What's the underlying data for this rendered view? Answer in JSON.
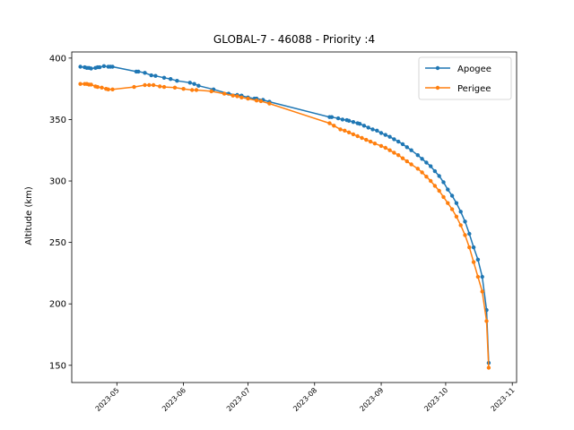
{
  "chart_data": {
    "type": "line",
    "title": "GLOBAL-7 - 46088 - Priority :4",
    "xlabel": "",
    "ylabel": "Altitude (km)",
    "xlim": [
      "2023-04-10",
      "2023-11-03"
    ],
    "ylim": [
      136,
      405
    ],
    "x_ticks": [
      "2023-05",
      "2023-06",
      "2023-07",
      "2023-08",
      "2023-09",
      "2023-10",
      "2023-11"
    ],
    "y_ticks": [
      150,
      200,
      250,
      300,
      350,
      400
    ],
    "grid": false,
    "legend_position": "top-right",
    "series": [
      {
        "name": "Apogee",
        "color": "#1f77b4",
        "points": [
          [
            "2023-04-14",
            393
          ],
          [
            "2023-04-16",
            392.5
          ],
          [
            "2023-04-17",
            392
          ],
          [
            "2023-04-18",
            392
          ],
          [
            "2023-04-19",
            391.5
          ],
          [
            "2023-04-21",
            392
          ],
          [
            "2023-04-22",
            392.5
          ],
          [
            "2023-04-23",
            392.5
          ],
          [
            "2023-04-25",
            393.5
          ],
          [
            "2023-04-27",
            393
          ],
          [
            "2023-04-28",
            393
          ],
          [
            "2023-04-29",
            393
          ],
          [
            "2023-05-10",
            389
          ],
          [
            "2023-05-11",
            389
          ],
          [
            "2023-05-14",
            388
          ],
          [
            "2023-05-17",
            386
          ],
          [
            "2023-05-19",
            385.5
          ],
          [
            "2023-05-23",
            384
          ],
          [
            "2023-05-26",
            383
          ],
          [
            "2023-05-29",
            381.5
          ],
          [
            "2023-06-04",
            380
          ],
          [
            "2023-06-06",
            379
          ],
          [
            "2023-06-08",
            377.5
          ],
          [
            "2023-06-15",
            374.5
          ],
          [
            "2023-06-22",
            371
          ],
          [
            "2023-06-26",
            370
          ],
          [
            "2023-06-28",
            369.5
          ],
          [
            "2023-07-01",
            368
          ],
          [
            "2023-07-04",
            367
          ],
          [
            "2023-07-05",
            367
          ],
          [
            "2023-07-08",
            366
          ],
          [
            "2023-07-11",
            364.5
          ],
          [
            "2023-08-08",
            352
          ],
          [
            "2023-08-09",
            352
          ],
          [
            "2023-08-12",
            351
          ],
          [
            "2023-08-14",
            350
          ],
          [
            "2023-08-16",
            349.5
          ],
          [
            "2023-08-17",
            349
          ],
          [
            "2023-08-19",
            348
          ],
          [
            "2023-08-21",
            347
          ],
          [
            "2023-08-22",
            346.5
          ],
          [
            "2023-08-24",
            345
          ],
          [
            "2023-08-26",
            343.5
          ],
          [
            "2023-08-28",
            342
          ],
          [
            "2023-08-30",
            341
          ],
          [
            "2023-09-01",
            339
          ],
          [
            "2023-09-03",
            337.5
          ],
          [
            "2023-09-05",
            336
          ],
          [
            "2023-09-07",
            334
          ],
          [
            "2023-09-09",
            332
          ],
          [
            "2023-09-11",
            330
          ],
          [
            "2023-09-13",
            327.5
          ],
          [
            "2023-09-15",
            325
          ],
          [
            "2023-09-18",
            321
          ],
          [
            "2023-09-20",
            318
          ],
          [
            "2023-09-22",
            315
          ],
          [
            "2023-09-24",
            312
          ],
          [
            "2023-09-26",
            308
          ],
          [
            "2023-09-28",
            304
          ],
          [
            "2023-09-30",
            299
          ],
          [
            "2023-10-02",
            293
          ],
          [
            "2023-10-04",
            288
          ],
          [
            "2023-10-06",
            282
          ],
          [
            "2023-10-08",
            275
          ],
          [
            "2023-10-10",
            267
          ],
          [
            "2023-10-12",
            257
          ],
          [
            "2023-10-14",
            246
          ],
          [
            "2023-10-16",
            236
          ],
          [
            "2023-10-18",
            222
          ],
          [
            "2023-10-20",
            195
          ],
          [
            "2023-10-21",
            152
          ]
        ]
      },
      {
        "name": "Perigee",
        "color": "#ff7f0e",
        "points": [
          [
            "2023-04-14",
            379
          ],
          [
            "2023-04-16",
            379
          ],
          [
            "2023-04-17",
            379
          ],
          [
            "2023-04-18",
            378.5
          ],
          [
            "2023-04-19",
            378.5
          ],
          [
            "2023-04-21",
            377
          ],
          [
            "2023-04-22",
            376.5
          ],
          [
            "2023-04-24",
            376
          ],
          [
            "2023-04-26",
            375
          ],
          [
            "2023-04-27",
            374.5
          ],
          [
            "2023-04-29",
            374.5
          ],
          [
            "2023-05-09",
            376.5
          ],
          [
            "2023-05-14",
            378
          ],
          [
            "2023-05-16",
            378
          ],
          [
            "2023-05-18",
            378
          ],
          [
            "2023-05-21",
            377
          ],
          [
            "2023-05-23",
            376.5
          ],
          [
            "2023-05-28",
            376
          ],
          [
            "2023-06-01",
            375
          ],
          [
            "2023-06-05",
            374
          ],
          [
            "2023-06-07",
            374
          ],
          [
            "2023-06-14",
            373
          ],
          [
            "2023-06-20",
            371
          ],
          [
            "2023-06-24",
            369.5
          ],
          [
            "2023-06-26",
            369
          ],
          [
            "2023-06-28",
            368
          ],
          [
            "2023-07-01",
            367
          ],
          [
            "2023-07-05",
            365.5
          ],
          [
            "2023-07-07",
            365
          ],
          [
            "2023-07-11",
            363
          ],
          [
            "2023-08-08",
            347
          ],
          [
            "2023-08-10",
            345
          ],
          [
            "2023-08-13",
            342
          ],
          [
            "2023-08-15",
            341
          ],
          [
            "2023-08-17",
            339.5
          ],
          [
            "2023-08-19",
            338
          ],
          [
            "2023-08-21",
            336.5
          ],
          [
            "2023-08-23",
            335
          ],
          [
            "2023-08-25",
            333.5
          ],
          [
            "2023-08-27",
            332
          ],
          [
            "2023-08-29",
            330.5
          ],
          [
            "2023-09-01",
            328.5
          ],
          [
            "2023-09-03",
            327
          ],
          [
            "2023-09-05",
            325
          ],
          [
            "2023-09-07",
            323
          ],
          [
            "2023-09-09",
            321
          ],
          [
            "2023-09-11",
            318.5
          ],
          [
            "2023-09-13",
            316
          ],
          [
            "2023-09-15",
            313.5
          ],
          [
            "2023-09-18",
            310
          ],
          [
            "2023-09-20",
            307
          ],
          [
            "2023-09-22",
            303.5
          ],
          [
            "2023-09-24",
            300
          ],
          [
            "2023-09-26",
            296
          ],
          [
            "2023-09-28",
            292
          ],
          [
            "2023-09-30",
            287
          ],
          [
            "2023-10-02",
            282
          ],
          [
            "2023-10-04",
            277
          ],
          [
            "2023-10-06",
            271
          ],
          [
            "2023-10-08",
            264
          ],
          [
            "2023-10-10",
            256
          ],
          [
            "2023-10-12",
            246
          ],
          [
            "2023-10-14",
            234
          ],
          [
            "2023-10-16",
            222
          ],
          [
            "2023-10-18",
            210
          ],
          [
            "2023-10-20",
            186
          ],
          [
            "2023-10-21",
            148
          ]
        ]
      }
    ]
  }
}
